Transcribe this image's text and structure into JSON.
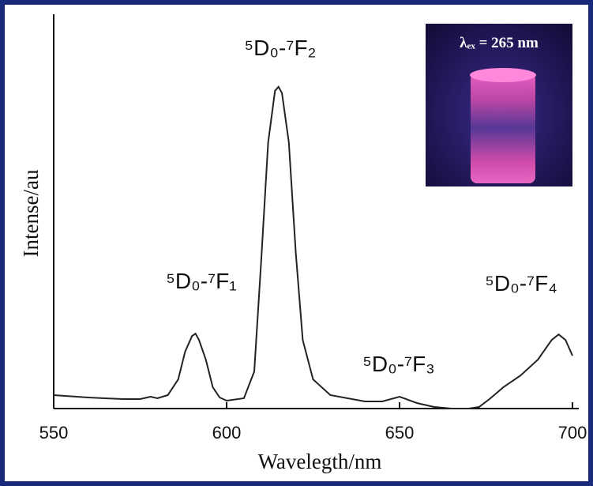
{
  "chart_data": {
    "type": "line",
    "x_label": "Wavelegth/nm",
    "y_label": "Intense/au",
    "x": [
      550,
      560,
      570,
      575,
      578,
      580,
      583,
      586,
      588,
      590,
      591,
      592,
      594,
      596,
      598,
      600,
      605,
      608,
      610,
      612,
      614,
      615,
      616,
      618,
      620,
      622,
      625,
      630,
      640,
      645,
      650,
      655,
      660,
      665,
      670,
      673,
      676,
      680,
      685,
      690,
      694,
      696,
      698,
      700
    ],
    "values": [
      3.4,
      2.8,
      2.4,
      2.4,
      3.0,
      2.6,
      3.4,
      7.4,
      14.4,
      18.4,
      19.0,
      17.4,
      12.4,
      5.4,
      2.8,
      2.0,
      2.6,
      9.4,
      37.5,
      67.5,
      80.6,
      81.6,
      80.0,
      67.5,
      39.5,
      17.4,
      7.4,
      3.4,
      1.8,
      1.8,
      3.0,
      1.4,
      0.4,
      0,
      0,
      0.4,
      2.4,
      5.4,
      8.4,
      12.4,
      17.4,
      18.8,
      17.4,
      13.4
    ],
    "color": "#222222",
    "xlim": [
      550,
      700
    ],
    "xticks": [
      550,
      600,
      650,
      700
    ],
    "ylim": [
      0,
      100
    ],
    "annotations": [
      "⁵D₀-⁷F₁",
      "⁵D₀-⁷F₂",
      "⁵D₀-⁷F₃",
      "⁵D₀-⁷F₄"
    ],
    "inset_label": "λₑₓ = 265 nm"
  }
}
